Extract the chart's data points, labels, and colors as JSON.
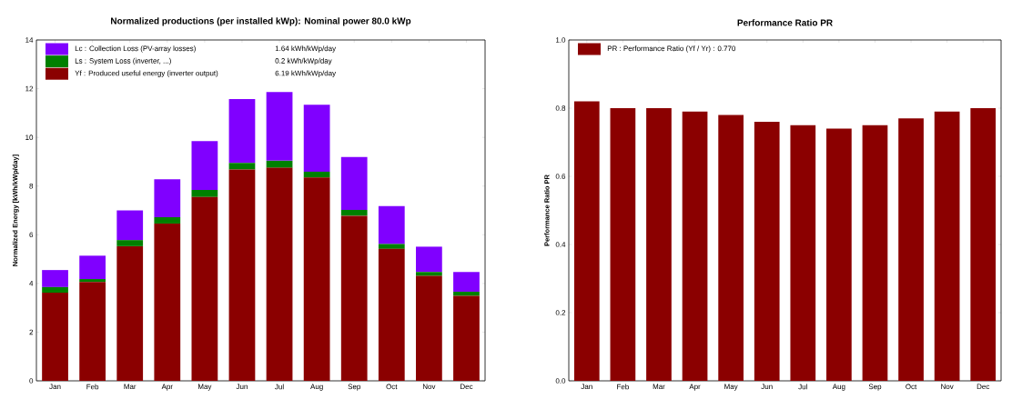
{
  "chart_data": [
    {
      "type": "bar",
      "stacked": true,
      "title": "Normalized productions (per installed kWp):  Nominal power 80.0 kWp",
      "ylabel": "Normalized Energy [kWh/kWp/day]",
      "categories": [
        "Jan",
        "Feb",
        "Mar",
        "Apr",
        "May",
        "Jun",
        "Jul",
        "Aug",
        "Sep",
        "Oct",
        "Nov",
        "Dec"
      ],
      "series": [
        {
          "name": "Yf : Produced useful energy  (inverter output)",
          "color": "#8b0000",
          "values": [
            3.62,
            4.06,
            5.53,
            6.46,
            7.55,
            8.68,
            8.75,
            8.35,
            6.78,
            5.42,
            4.31,
            3.49
          ]
        },
        {
          "name": "Ls : System Loss  (inverter, ...)",
          "color": "#008000",
          "values": [
            0.23,
            0.12,
            0.25,
            0.26,
            0.29,
            0.27,
            0.29,
            0.24,
            0.24,
            0.2,
            0.16,
            0.17
          ]
        },
        {
          "name": "Lc : Collection Loss (PV-array losses)",
          "color": "#8000ff",
          "values": [
            0.7,
            0.96,
            1.22,
            1.56,
            2.01,
            2.62,
            2.82,
            2.75,
            2.17,
            1.56,
            1.04,
            0.81
          ]
        }
      ],
      "annotations": [
        "1.64 kWh/kWp/day",
        "0.2 kWh/kWp/day",
        "6.19 kWh/kWp/day"
      ],
      "ylim": [
        0,
        14
      ],
      "yticks": [
        0,
        2,
        4,
        6,
        8,
        10,
        12,
        14
      ],
      "legend": "top left"
    },
    {
      "type": "bar",
      "title": "Performance Ratio PR",
      "ylabel": "Performance Ratio PR",
      "categories": [
        "Jan",
        "Feb",
        "Mar",
        "Apr",
        "May",
        "Jun",
        "Jul",
        "Aug",
        "Sep",
        "Oct",
        "Nov",
        "Dec"
      ],
      "series": [
        {
          "name": "PR : Performance Ratio (Yf / Yr) :  0.770",
          "color": "#8b0000",
          "values": [
            0.82,
            0.8,
            0.8,
            0.79,
            0.78,
            0.76,
            0.75,
            0.74,
            0.75,
            0.77,
            0.79,
            0.8
          ]
        }
      ],
      "ylim": [
        0,
        1.0
      ],
      "yticks": [
        {
          "value": 0,
          "label": "0.0"
        },
        {
          "value": 0.2,
          "label": "0.2"
        },
        {
          "value": 0.4,
          "label": "0.4"
        },
        {
          "value": 0.6,
          "label": "0.6"
        },
        {
          "value": 0.8,
          "label": "0.8"
        },
        {
          "value": 1.0,
          "label": "1.0"
        }
      ],
      "legend": "top left"
    }
  ]
}
